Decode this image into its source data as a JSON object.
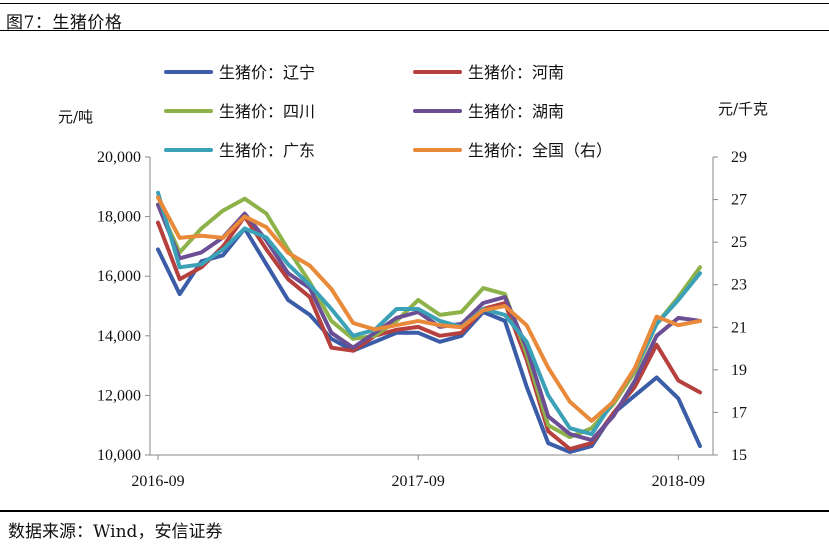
{
  "figure": {
    "title": "图7：生猪价格",
    "source": "数据来源：Wind，安信证券"
  },
  "chart_data": {
    "type": "line",
    "title": "生猪价格",
    "left_unit": "元/吨",
    "right_unit": "元/千克",
    "ylim_left": [
      10000,
      20000
    ],
    "ylim_right": [
      15,
      29
    ],
    "left_ticks": [
      "20,000",
      "18,000",
      "16,000",
      "14,000",
      "12,000",
      "10,000"
    ],
    "right_ticks": [
      "29",
      "27",
      "25",
      "23",
      "21",
      "19",
      "17",
      "15"
    ],
    "x_tick_labels": [
      {
        "label": "2016-09",
        "index": 0
      },
      {
        "label": "2017-09",
        "index": 12
      },
      {
        "label": "2018-09",
        "index": 24
      }
    ],
    "x": [
      "2016-09",
      "2016-10",
      "2016-11",
      "2016-12",
      "2017-01",
      "2017-02",
      "2017-03",
      "2017-04",
      "2017-05",
      "2017-06",
      "2017-07",
      "2017-08",
      "2017-09",
      "2017-10",
      "2017-11",
      "2017-12",
      "2018-01",
      "2018-02",
      "2018-03",
      "2018-04",
      "2018-05",
      "2018-06",
      "2018-07",
      "2018-08",
      "2018-09",
      "2018-10"
    ],
    "series": [
      {
        "name": "生猪价：辽宁",
        "color": "#3b5ca7",
        "axis": "left",
        "values": [
          16900,
          15400,
          16500,
          16700,
          17600,
          16400,
          15200,
          14700,
          13900,
          13500,
          13800,
          14100,
          14100,
          13800,
          14000,
          14800,
          14500,
          12300,
          10400,
          10100,
          10300,
          11400,
          12000,
          12600,
          11900,
          10300
        ]
      },
      {
        "name": "生猪价：河南",
        "color": "#b5403d",
        "axis": "left",
        "values": [
          17800,
          15900,
          16300,
          17000,
          18000,
          16900,
          15900,
          15300,
          13600,
          13500,
          14000,
          14200,
          14300,
          14000,
          14100,
          14900,
          15100,
          13200,
          10800,
          10200,
          10400,
          11400,
          12300,
          13700,
          12500,
          12100
        ]
      },
      {
        "name": "生猪价：四川",
        "color": "#8eb24a",
        "axis": "left",
        "values": [
          18400,
          16800,
          17600,
          18200,
          18600,
          18100,
          16900,
          15800,
          14500,
          13900,
          14000,
          14500,
          15200,
          14700,
          14800,
          15600,
          15400,
          13400,
          11000,
          10600,
          10900,
          11700,
          12800,
          14400,
          15300,
          16300
        ]
      },
      {
        "name": "生猪价：湖南",
        "color": "#6b4e94",
        "axis": "left",
        "values": [
          18400,
          16600,
          16800,
          17300,
          18100,
          17200,
          16100,
          15600,
          14100,
          13600,
          14100,
          14600,
          14800,
          14300,
          14400,
          15100,
          15300,
          13600,
          11300,
          10700,
          10500,
          11300,
          12500,
          14000,
          14600,
          14500
        ]
      },
      {
        "name": "生猪价：广东",
        "color": "#3aa1b7",
        "axis": "left",
        "values": [
          18800,
          16300,
          16400,
          16900,
          17600,
          17300,
          16400,
          15700,
          14900,
          14000,
          14200,
          14900,
          14900,
          14500,
          14300,
          14900,
          14700,
          13800,
          12000,
          10900,
          10700,
          11800,
          12900,
          14400,
          15200,
          16100
        ]
      },
      {
        "name": "生猪价：全国（右）",
        "color": "#e98a3a",
        "axis": "right",
        "values": [
          27.1,
          25.2,
          25.3,
          25.2,
          26.2,
          25.7,
          24.5,
          23.9,
          22.8,
          21.2,
          20.9,
          21.1,
          21.3,
          21.1,
          21.0,
          21.8,
          22.0,
          21.1,
          19.1,
          17.5,
          16.6,
          17.5,
          19.1,
          21.5,
          21.1,
          21.3
        ]
      }
    ]
  }
}
